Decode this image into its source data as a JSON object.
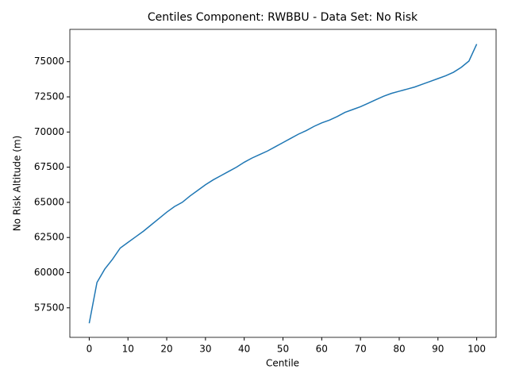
{
  "chart_data": {
    "type": "line",
    "title": "Centiles Component: RWBBU - Data Set: No Risk",
    "x_label": "Centile",
    "y_label": "No Risk Altitude (m)",
    "x": [
      0,
      2,
      4,
      6,
      8,
      10,
      12,
      14,
      16,
      18,
      20,
      22,
      24,
      26,
      28,
      30,
      32,
      34,
      36,
      38,
      40,
      42,
      44,
      46,
      48,
      50,
      52,
      54,
      56,
      58,
      60,
      62,
      64,
      66,
      68,
      70,
      72,
      74,
      76,
      78,
      80,
      82,
      84,
      86,
      88,
      90,
      92,
      94,
      96,
      98,
      100
    ],
    "series": [
      {
        "color": "#1f77b4",
        "values": [
          56400,
          59300,
          60250,
          60950,
          61750,
          62150,
          62550,
          62950,
          63400,
          63850,
          64300,
          64700,
          65000,
          65450,
          65850,
          66250,
          66600,
          66900,
          67200,
          67500,
          67850,
          68150,
          68400,
          68650,
          68950,
          69250,
          69550,
          69850,
          70100,
          70400,
          70650,
          70850,
          71100,
          71400,
          71600,
          71800,
          72050,
          72300,
          72550,
          72750,
          72900,
          73050,
          73200,
          73400,
          73600,
          73800,
          74000,
          74250,
          74600,
          75050,
          76250
        ]
      }
    ],
    "xlim": [
      -5,
      105
    ],
    "ylim": [
      55400,
      77300
    ],
    "xticks": [
      0,
      10,
      20,
      30,
      40,
      50,
      60,
      70,
      80,
      90,
      100
    ],
    "yticks": [
      57500,
      60000,
      62500,
      65000,
      67500,
      70000,
      72500,
      75000
    ],
    "grid": false
  }
}
